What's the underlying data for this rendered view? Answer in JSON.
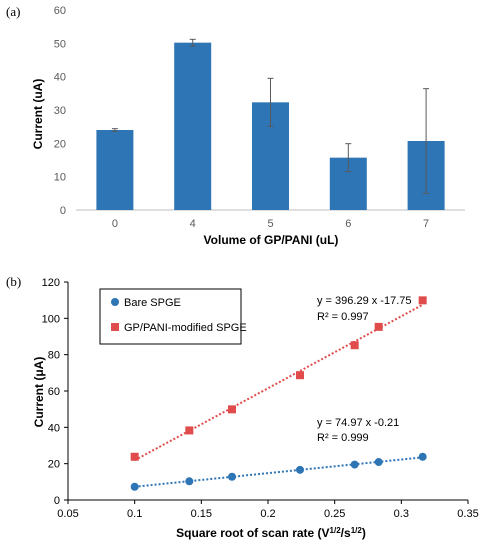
{
  "chart_data": [
    {
      "type": "bar",
      "panel_label": "(a)",
      "categories": [
        "0",
        "4",
        "5",
        "6",
        "7"
      ],
      "values": [
        24,
        50.2,
        32.3,
        15.7,
        20.7
      ],
      "error": [
        0.4,
        1.0,
        7.2,
        4.2,
        15.7
      ],
      "xlabel": "Volume of GP/PANI (uL)",
      "ylabel": "Current (uA)",
      "ylim": [
        0,
        60
      ],
      "yticks": [
        "0",
        "10",
        "20",
        "30",
        "40",
        "50",
        "60"
      ],
      "color": "#2E75B6",
      "grid": false
    },
    {
      "type": "scatter",
      "panel_label": "(b)",
      "xlabel": "Square root of scan rate (V^1/2/s^1/2)",
      "ylabel": "Current (μA)",
      "xlim": [
        0.05,
        0.35
      ],
      "ylim": [
        0,
        120
      ],
      "xticks": [
        "0.05",
        "0.1",
        "0.15",
        "0.2",
        "0.25",
        "0.3",
        "0.35"
      ],
      "yticks": [
        "0",
        "20",
        "40",
        "60",
        "80",
        "100",
        "120"
      ],
      "legend_position": "top-left",
      "series": [
        {
          "name": "Bare SPGE",
          "color": "#2E75B6",
          "marker": "circle",
          "x": [
            0.1,
            0.141,
            0.173,
            0.224,
            0.265,
            0.283,
            0.316
          ],
          "y": [
            7.3,
            10.3,
            12.8,
            16.6,
            19.5,
            20.9,
            23.8
          ],
          "trendline": {
            "slope": 74.97,
            "intercept": -0.21
          },
          "equation": "y = 74.97 x -0.21",
          "r2": "R² = 0.999"
        },
        {
          "name": "GP/PANI-modified SPGE",
          "color": "#E04B4B",
          "marker": "square",
          "x": [
            0.1,
            0.141,
            0.173,
            0.224,
            0.265,
            0.283,
            0.316
          ],
          "y": [
            23.8,
            38.3,
            49.9,
            68.7,
            85.2,
            95.3,
            109.9
          ],
          "trendline": {
            "slope": 396.29,
            "intercept": -17.75
          },
          "equation": "y = 396.29 x -17.75",
          "r2": "R² = 0.997"
        }
      ]
    }
  ]
}
